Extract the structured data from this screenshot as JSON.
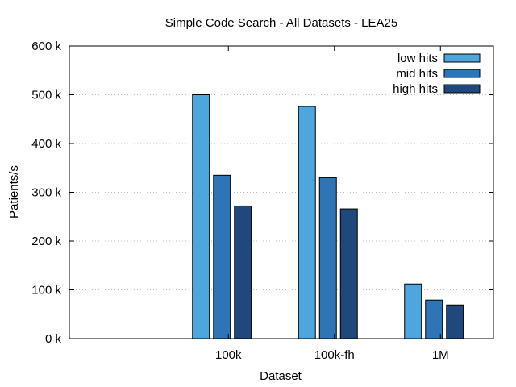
{
  "chart_data": {
    "type": "bar",
    "title": "Simple Code Search - All Datasets - LEA25",
    "xlabel": "Dataset",
    "ylabel": "Patients/s",
    "categories": [
      "100k",
      "100k-fh",
      "1M"
    ],
    "ylim": [
      0,
      600000
    ],
    "yticks": [
      0,
      100000,
      200000,
      300000,
      400000,
      500000,
      600000
    ],
    "ytick_labels": [
      "0 k",
      "100 k",
      "200 k",
      "300 k",
      "400 k",
      "500 k",
      "600 k"
    ],
    "grid": "horizontal dotted",
    "legend_position": "top-right",
    "series": [
      {
        "name": "low hits",
        "color": "#4ea6dc",
        "values": [
          500000,
          476000,
          112000
        ]
      },
      {
        "name": "mid hits",
        "color": "#2e75b6",
        "values": [
          335000,
          330000,
          79000
        ]
      },
      {
        "name": "high hits",
        "color": "#1f497d",
        "values": [
          272000,
          266000,
          69000
        ]
      }
    ]
  }
}
